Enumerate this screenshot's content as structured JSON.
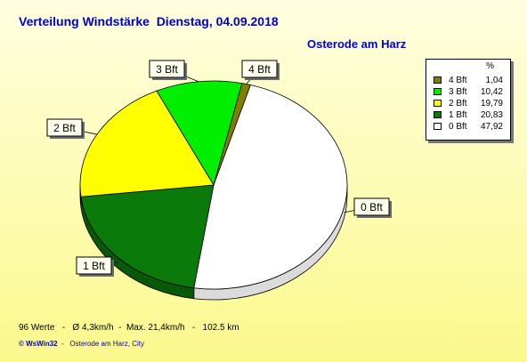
{
  "header": {
    "title": "Verteilung Windstärke  Dienstag, 04.09.2018",
    "location": "Osterode am Harz"
  },
  "colors": {
    "title_text": "#0000cc",
    "bft0": "#ffffff",
    "bft1": "#0a7a0a",
    "bft2": "#ffff00",
    "bft3": "#00ee00",
    "bft4": "#808000"
  },
  "legend": {
    "header": "%",
    "items": [
      {
        "label": "4 Bft",
        "value": "1,04",
        "color": "#808000"
      },
      {
        "label": "3 Bft",
        "value": "10,42",
        "color": "#00ee00"
      },
      {
        "label": "2 Bft",
        "value": "19,79",
        "color": "#ffff00"
      },
      {
        "label": "1 Bft",
        "value": "20,83",
        "color": "#0a7a0a"
      },
      {
        "label": "0 Bft",
        "value": "47,92",
        "color": "#ffffff"
      }
    ]
  },
  "chart_data": {
    "type": "pie",
    "title": "Verteilung Windstärke  Dienstag, 04.09.2018",
    "subtitle": "Osterode am Harz",
    "unit": "%",
    "legend_position": "top-right",
    "slices": [
      {
        "label": "0 Bft",
        "value": 47.92,
        "color": "#ffffff"
      },
      {
        "label": "1 Bft",
        "value": 20.83,
        "color": "#0a7a0a"
      },
      {
        "label": "2 Bft",
        "value": 19.79,
        "color": "#ffff00"
      },
      {
        "label": "3 Bft",
        "value": 10.42,
        "color": "#00ee00"
      },
      {
        "label": "4 Bft",
        "value": 1.04,
        "color": "#808000"
      }
    ]
  },
  "footer": {
    "stats": "96 Werte   -   Ø 4,3km/h  -  Max. 21,4km/h   -   102.5 km",
    "credit_brand": "© WsWin32",
    "credit_rest": "  -   Osterode am Harz, City"
  }
}
